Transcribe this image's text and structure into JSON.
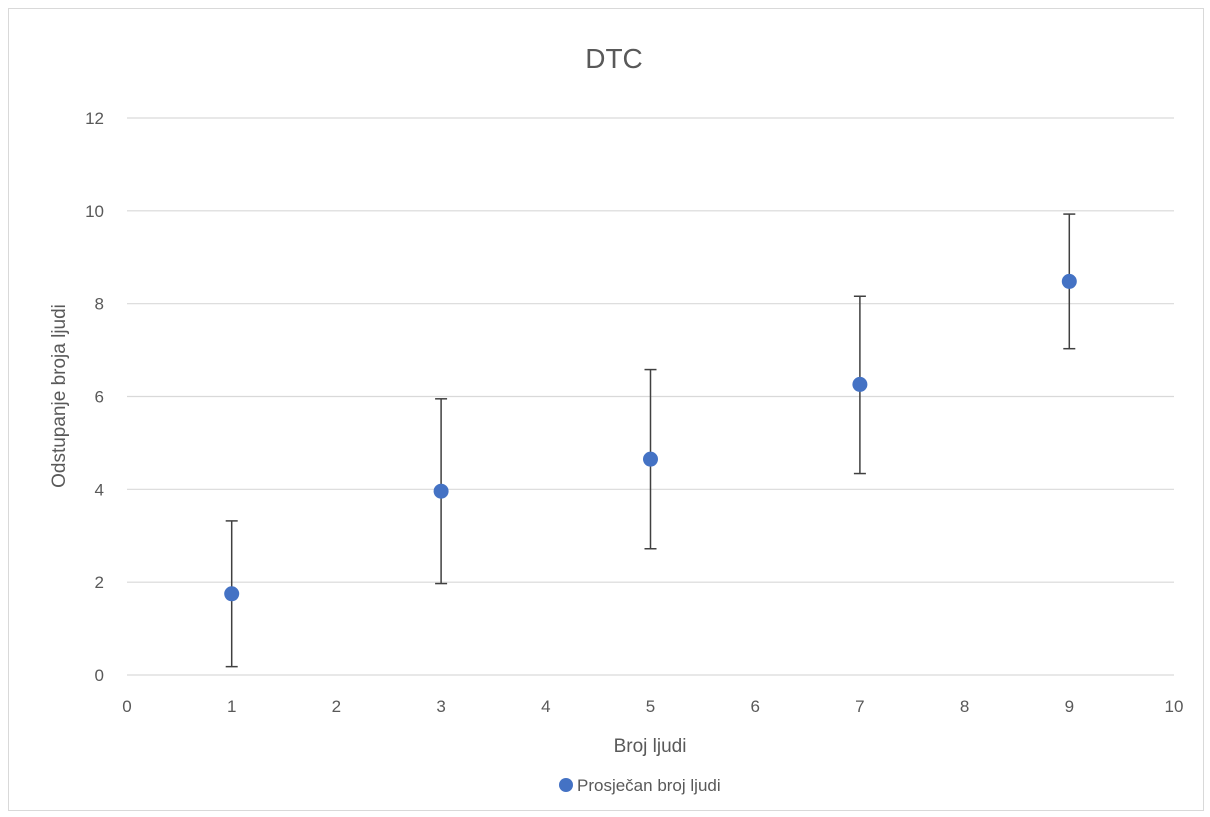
{
  "chart_data": {
    "type": "scatter",
    "title": "DTC",
    "xlabel": "Broj ljudi",
    "ylabel": "Odstupanje broja ljudi",
    "xlim": [
      0,
      10
    ],
    "ylim": [
      0,
      12
    ],
    "x_ticks": [
      0,
      1,
      2,
      3,
      4,
      5,
      6,
      7,
      8,
      9,
      10
    ],
    "y_ticks": [
      0,
      2,
      4,
      6,
      8,
      10,
      12
    ],
    "grid": "horizontal",
    "legend_position": "bottom",
    "series": [
      {
        "name": "Prosječan broj ljudi",
        "color": "#4472C4",
        "points": [
          {
            "x": 1,
            "y": 1.75,
            "err_low": 0.18,
            "err_high": 3.32
          },
          {
            "x": 3,
            "y": 3.96,
            "err_low": 1.97,
            "err_high": 5.95
          },
          {
            "x": 5,
            "y": 4.65,
            "err_low": 2.72,
            "err_high": 6.58
          },
          {
            "x": 7,
            "y": 6.26,
            "err_low": 4.34,
            "err_high": 8.16
          },
          {
            "x": 9,
            "y": 8.48,
            "err_low": 7.03,
            "err_high": 9.93
          }
        ]
      }
    ]
  }
}
